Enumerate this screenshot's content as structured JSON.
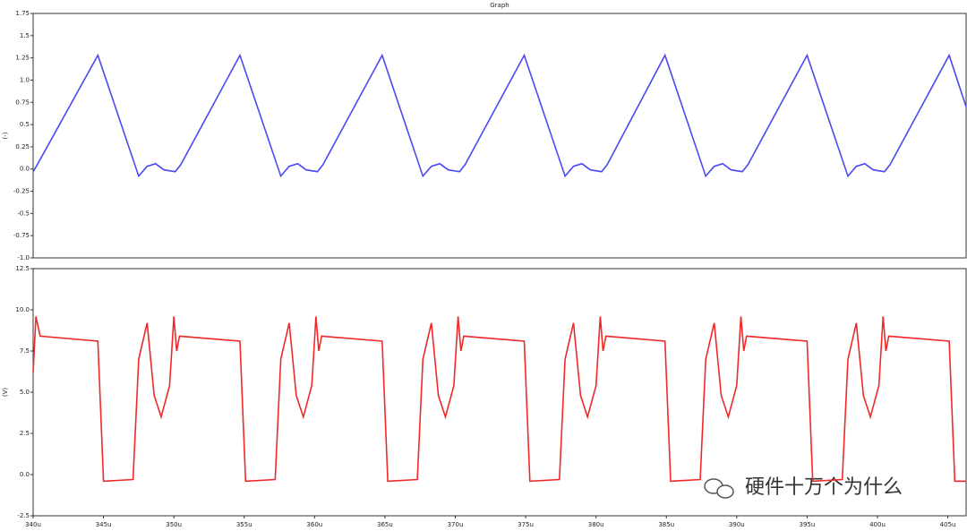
{
  "chart_data": [
    {
      "type": "line",
      "title": "Graph",
      "ylabel": "(-)",
      "x": [
        340.0,
        340.3,
        344.6,
        347.5,
        348.1,
        348.7,
        349.3,
        350.1,
        350.5,
        354.7,
        357.6,
        358.2,
        358.8,
        359.4,
        360.2,
        360.6,
        364.8,
        367.7,
        368.3,
        368.9,
        369.5,
        370.3,
        370.7,
        374.9,
        377.8,
        378.4,
        379.0,
        379.6,
        380.4,
        380.8,
        384.9,
        387.8,
        388.4,
        389.0,
        389.6,
        390.4,
        390.8,
        395.0,
        397.9,
        398.5,
        399.1,
        399.7,
        400.5,
        400.9,
        405.1,
        406.3
      ],
      "series": [
        {
          "color": "#4a4af0",
          "values": [
            -0.03,
            0.05,
            1.28,
            -0.08,
            0.03,
            0.06,
            -0.01,
            -0.03,
            0.05,
            1.28,
            -0.08,
            0.03,
            0.06,
            -0.01,
            -0.03,
            0.05,
            1.28,
            -0.08,
            0.03,
            0.06,
            -0.01,
            -0.03,
            0.05,
            1.28,
            -0.08,
            0.03,
            0.06,
            -0.01,
            -0.03,
            0.05,
            1.28,
            -0.08,
            0.03,
            0.06,
            -0.01,
            -0.03,
            0.05,
            1.28,
            -0.08,
            0.03,
            0.06,
            -0.01,
            -0.03,
            0.05,
            1.28,
            0.7
          ]
        }
      ],
      "xlim": [
        340,
        406.3
      ],
      "ylim": [
        -1.0,
        1.75
      ],
      "yticks": [
        {
          "value": -1,
          "label": "-1.0"
        },
        -0.75,
        -0.5,
        -0.25,
        {
          "value": 0,
          "label": "0.0"
        },
        0.25,
        0.5,
        0.75,
        {
          "value": 1,
          "label": "1.0"
        },
        1.25,
        1.5,
        1.75
      ]
    },
    {
      "type": "line",
      "ylabel": "(V)",
      "x": [
        340.0,
        340.2,
        340.5,
        344.6,
        345.0,
        347.1,
        347.5,
        348.1,
        348.6,
        349.1,
        349.7,
        350.0,
        350.2,
        350.4,
        354.7,
        355.1,
        357.2,
        357.6,
        358.2,
        358.7,
        359.2,
        359.8,
        360.1,
        360.3,
        360.5,
        364.8,
        365.2,
        367.3,
        367.7,
        368.3,
        368.8,
        369.3,
        369.9,
        370.2,
        370.4,
        370.6,
        374.9,
        375.3,
        377.4,
        377.8,
        378.4,
        378.9,
        379.4,
        380.0,
        380.3,
        380.5,
        380.7,
        384.9,
        385.3,
        387.4,
        387.8,
        388.4,
        388.9,
        389.4,
        390.0,
        390.3,
        390.5,
        390.7,
        395.0,
        395.4,
        397.5,
        397.9,
        398.5,
        399.0,
        399.5,
        400.1,
        400.4,
        400.6,
        400.8,
        405.1,
        405.5,
        406.3
      ],
      "series": [
        {
          "color": "#f02828",
          "values": [
            6.2,
            9.6,
            8.4,
            8.1,
            -0.4,
            -0.3,
            7.0,
            9.2,
            4.8,
            3.5,
            5.4,
            9.6,
            7.5,
            8.4,
            8.1,
            -0.4,
            -0.3,
            7.0,
            9.2,
            4.8,
            3.5,
            5.4,
            9.6,
            7.5,
            8.4,
            8.1,
            -0.4,
            -0.3,
            7.0,
            9.2,
            4.8,
            3.5,
            5.4,
            9.6,
            7.5,
            8.4,
            8.1,
            -0.4,
            -0.3,
            7.0,
            9.2,
            4.8,
            3.5,
            5.4,
            9.6,
            7.5,
            8.4,
            8.1,
            -0.4,
            -0.3,
            7.0,
            9.2,
            4.8,
            3.5,
            5.4,
            9.6,
            7.5,
            8.4,
            8.1,
            -0.4,
            -0.3,
            7.0,
            9.2,
            4.8,
            3.5,
            5.4,
            9.6,
            7.5,
            8.4,
            8.1,
            -0.4,
            -0.4
          ]
        }
      ],
      "xlim": [
        340,
        406.3
      ],
      "xticks": [
        {
          "value": 340,
          "label": "340u"
        },
        {
          "value": 345,
          "label": "345u"
        },
        {
          "value": 350,
          "label": "350u"
        },
        {
          "value": 355,
          "label": "355u"
        },
        {
          "value": 360,
          "label": "360u"
        },
        {
          "value": 365,
          "label": "365u"
        },
        {
          "value": 370,
          "label": "370u"
        },
        {
          "value": 375,
          "label": "375u"
        },
        {
          "value": 380,
          "label": "380u"
        },
        {
          "value": 385,
          "label": "385u"
        },
        {
          "value": 390,
          "label": "390u"
        },
        {
          "value": 395,
          "label": "395u"
        },
        {
          "value": 400,
          "label": "400u"
        },
        {
          "value": 405,
          "label": "405u"
        }
      ],
      "ylim": [
        -2.5,
        12.5
      ],
      "yticks": [
        -2.5,
        {
          "value": 0,
          "label": "0.0"
        },
        2.5,
        {
          "value": 5,
          "label": "5.0"
        },
        7.5,
        {
          "value": 10,
          "label": "10.0"
        },
        12.5
      ]
    }
  ],
  "watermark": "硬件十万个为什么"
}
